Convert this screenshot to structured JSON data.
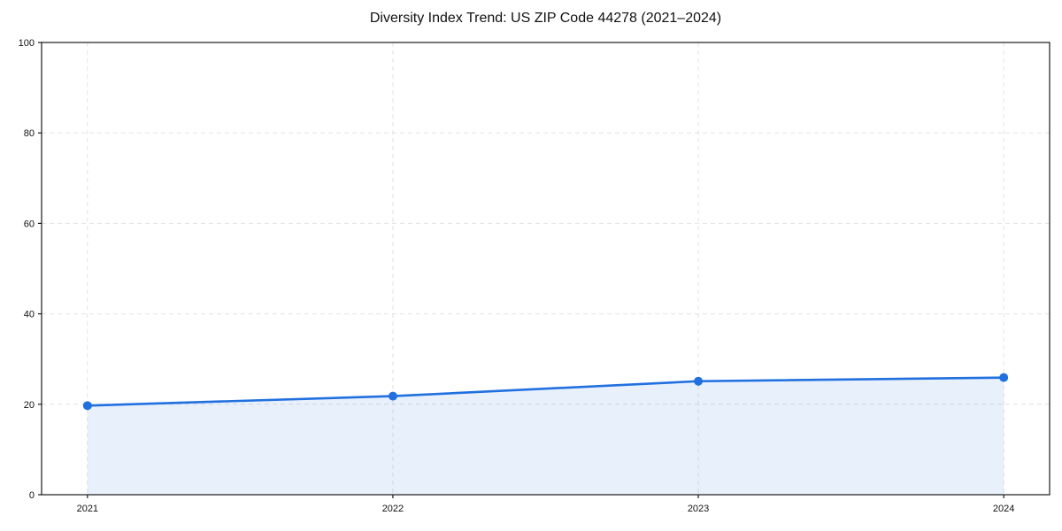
{
  "chart_data": {
    "type": "area",
    "title": "Diversity Index Trend: US ZIP Code 44278 (2021–2024)",
    "x": [
      2021,
      2022,
      2023,
      2024
    ],
    "xtick_labels": [
      "2021",
      "2022",
      "2023",
      "2024"
    ],
    "series": [
      {
        "name": "Diversity Index",
        "values": [
          19.7,
          21.8,
          25.1,
          25.9
        ]
      }
    ],
    "xlabel": "",
    "ylabel": "",
    "ylim": [
      0,
      100
    ],
    "yticks": [
      0,
      20,
      40,
      60,
      80,
      100
    ],
    "grid": true,
    "grid_style": "dashed",
    "legend": "none",
    "colors": {
      "line": "#2170e0",
      "marker": "#2170e0",
      "area_fill": "rgba(33,112,224,0.10)",
      "grid": "#e2e2e2",
      "spine": "#1a1a1a",
      "text": "#111111",
      "background": "#ffffff"
    }
  }
}
